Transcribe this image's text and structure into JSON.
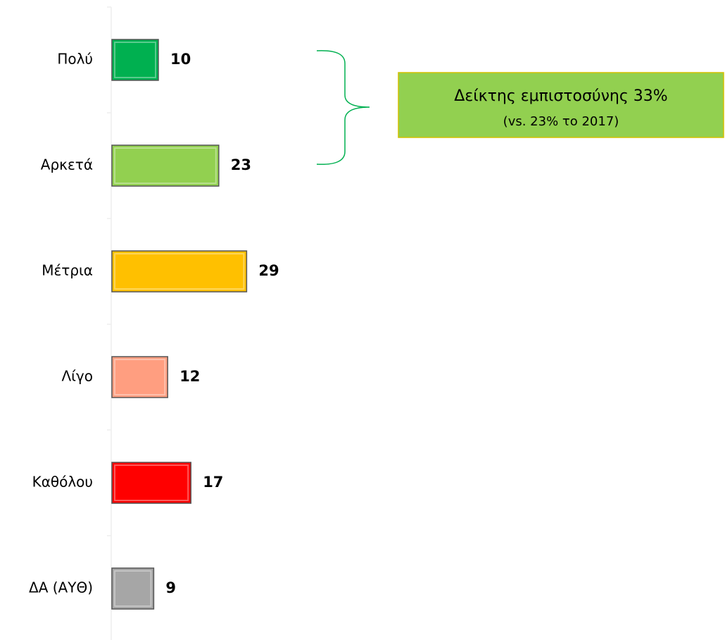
{
  "chart_data": {
    "type": "bar",
    "orientation": "horizontal",
    "categories": [
      "Πολύ",
      "Αρκετά",
      "Μέτρια",
      "Λίγο",
      "Καθόλου",
      "ΔΑ (ΑΥΘ)"
    ],
    "values": [
      10,
      23,
      29,
      12,
      17,
      9
    ],
    "colors": [
      "#00b050",
      "#92d050",
      "#ffc000",
      "#ff9e80",
      "#ff0000",
      "#a6a6a6"
    ],
    "annotation": {
      "text": "Δείκτης εμπιστοσύνης 33%",
      "subtext": "(vs. 23% το 2017)",
      "color": "#92d050"
    }
  }
}
